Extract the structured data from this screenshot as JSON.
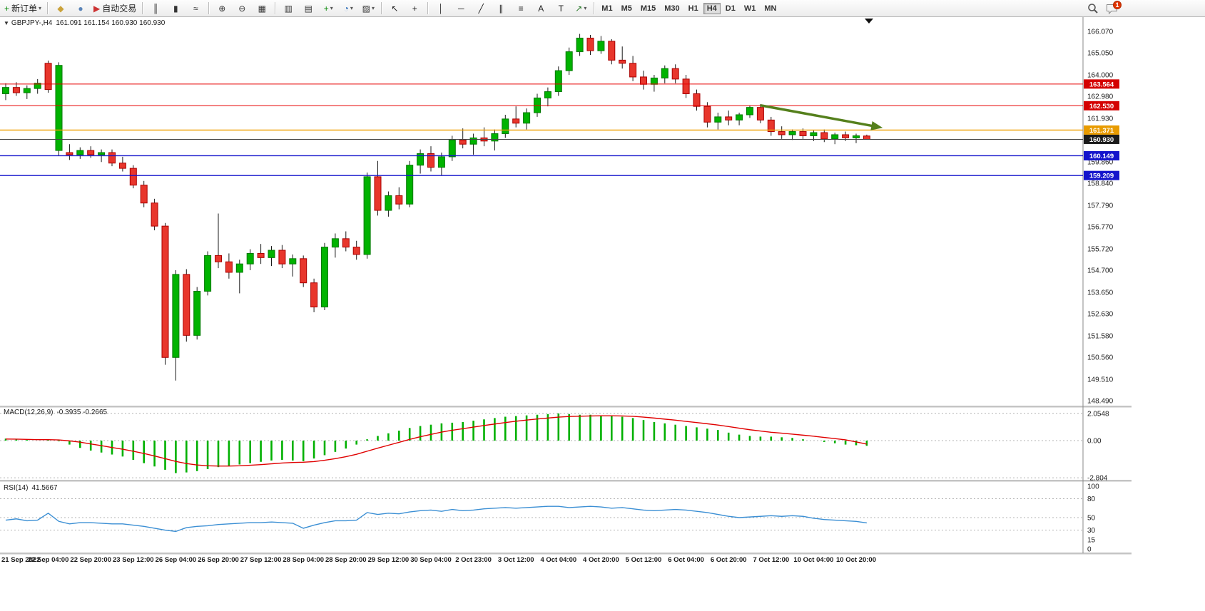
{
  "toolbar": {
    "buttons": [
      {
        "name": "new-order",
        "glyph": "+",
        "color": "#0a8a0a",
        "label": "新订单",
        "dropdown": true
      },
      {
        "sep": true
      },
      {
        "name": "metaeditor",
        "glyph": "◆",
        "color": "#caa23a"
      },
      {
        "name": "market-watch",
        "glyph": "●",
        "color": "#5b84b8"
      },
      {
        "name": "autotrade",
        "glyph": "▶",
        "color": "#cc3333",
        "label": "自动交易"
      },
      {
        "sep": true
      },
      {
        "name": "bar-chart",
        "glyph": "║",
        "color": "#333333"
      },
      {
        "name": "candlestick-chart",
        "glyph": "▮",
        "color": "#333333"
      },
      {
        "name": "line-chart",
        "glyph": "≈",
        "color": "#333333"
      },
      {
        "sep": true
      },
      {
        "name": "zoom-in",
        "glyph": "⊕",
        "color": "#333333"
      },
      {
        "name": "zoom-out",
        "glyph": "⊖",
        "color": "#333333"
      },
      {
        "name": "tile-windows",
        "glyph": "▦",
        "color": "#333333"
      },
      {
        "sep": true
      },
      {
        "name": "auto-scroll",
        "glyph": "▥",
        "color": "#333333"
      },
      {
        "name": "chart-shift",
        "glyph": "▤",
        "color": "#333333"
      },
      {
        "name": "new-chart",
        "glyph": "+",
        "color": "#0a8a0a",
        "dropdown": true
      },
      {
        "name": "periodicity",
        "glyph": "◔",
        "color": "#2a6ab8",
        "dropdown": true
      },
      {
        "name": "templates",
        "glyph": "▨",
        "color": "#333333",
        "dropdown": true
      },
      {
        "sep": true
      },
      {
        "name": "cursor",
        "glyph": "↖",
        "color": "#222222"
      },
      {
        "name": "crosshair",
        "glyph": "+",
        "color": "#222222"
      },
      {
        "sep": true
      },
      {
        "name": "vertical-line",
        "glyph": "│",
        "color": "#222222"
      },
      {
        "name": "horizontal-line",
        "glyph": "─",
        "color": "#222222"
      },
      {
        "name": "trendline",
        "glyph": "╱",
        "color": "#222222"
      },
      {
        "name": "equidistant-channel",
        "glyph": "∥",
        "color": "#222222"
      },
      {
        "name": "fibonacci",
        "glyph": "≡",
        "color": "#222222"
      },
      {
        "name": "text",
        "glyph": "A",
        "color": "#222222"
      },
      {
        "name": "text-label",
        "glyph": "T",
        "color": "#222222"
      },
      {
        "name": "arrows-tool",
        "glyph": "↗",
        "color": "#2a7a2a",
        "dropdown": true
      },
      {
        "sep": true
      }
    ],
    "timeframes": {
      "items": [
        "M1",
        "M5",
        "M15",
        "M30",
        "H1",
        "H4",
        "D1",
        "W1",
        "MN"
      ],
      "active": "H4"
    },
    "notification_badge": "1"
  },
  "chart": {
    "title": {
      "marker": "▼",
      "symbol": "GBPJPY-,H4",
      "ohlc": "161.091 161.154 160.930 160.930"
    },
    "price_axis_labels": [
      "166.070",
      "165.050",
      "164.000",
      "162.980",
      "161.930",
      "159.860",
      "158.840",
      "157.790",
      "156.770",
      "155.720",
      "154.700",
      "153.650",
      "152.630",
      "151.580",
      "150.560",
      "149.510",
      "148.490"
    ]
  },
  "macd": {
    "label": "MACD(12,26,9)",
    "values_text": "-0.3935 -0.2665",
    "axis_labels": [
      "2.0548",
      "0.00",
      "-2.804"
    ]
  },
  "rsi": {
    "label": "RSI(14)",
    "value_text": "41.5667",
    "axis_labels": [
      "100",
      "80",
      "50",
      "30",
      "15",
      "0"
    ]
  },
  "time_axis": [
    "21 Sep 2022",
    "22 Sep 04:00",
    "22 Sep 20:00",
    "23 Sep 12:00",
    "26 Sep 04:00",
    "26 Sep 20:00",
    "27 Sep 12:00",
    "28 Sep 04:00",
    "28 Sep 20:00",
    "29 Sep 12:00",
    "30 Sep 04:00",
    "2 Oct 23:00",
    "3 Oct 12:00",
    "4 Oct 04:00",
    "4 Oct 20:00",
    "5 Oct 12:00",
    "6 Oct 04:00",
    "6 Oct 20:00",
    "7 Oct 12:00",
    "10 Oct 04:00",
    "10 Oct 20:00"
  ],
  "chart_data": {
    "type": "candlestick",
    "symbol": "GBPJPY-",
    "timeframe": "H4",
    "price_ylim": [
      148.49,
      166.07
    ],
    "colors": {
      "up": "#00b300",
      "up_stroke": "#007700",
      "down": "#e8362c",
      "down_stroke": "#aa0000",
      "wick": "#1a1a1a",
      "macd_bar": "#00b000",
      "macd_signal": "#e00000",
      "rsi_line": "#3b8fd4"
    },
    "candles": [
      [
        163.1,
        163.6,
        162.8,
        163.4
      ],
      [
        163.4,
        163.65,
        163.0,
        163.15
      ],
      [
        163.15,
        163.5,
        162.85,
        163.35
      ],
      [
        163.35,
        163.8,
        163.1,
        163.6
      ],
      [
        164.55,
        164.68,
        163.15,
        163.3
      ],
      [
        160.4,
        164.6,
        160.15,
        164.45
      ],
      [
        160.3,
        160.7,
        159.95,
        160.2
      ],
      [
        160.2,
        160.55,
        160.0,
        160.4
      ],
      [
        160.4,
        160.6,
        160.05,
        160.2
      ],
      [
        160.2,
        160.45,
        159.85,
        160.3
      ],
      [
        160.3,
        160.45,
        159.65,
        159.8
      ],
      [
        159.8,
        160.1,
        159.4,
        159.55
      ],
      [
        159.55,
        159.7,
        158.6,
        158.75
      ],
      [
        158.75,
        158.95,
        157.7,
        157.9
      ],
      [
        157.9,
        158.1,
        156.6,
        156.8
      ],
      [
        156.8,
        156.95,
        150.2,
        150.55
      ],
      [
        150.55,
        154.7,
        149.45,
        154.5
      ],
      [
        154.5,
        154.75,
        151.3,
        151.6
      ],
      [
        151.6,
        153.9,
        151.4,
        153.7
      ],
      [
        153.7,
        155.6,
        153.5,
        155.4
      ],
      [
        155.4,
        157.4,
        154.8,
        155.1
      ],
      [
        155.1,
        155.5,
        154.3,
        154.6
      ],
      [
        154.6,
        155.2,
        153.6,
        155.0
      ],
      [
        155.0,
        155.7,
        154.7,
        155.5
      ],
      [
        155.5,
        155.95,
        155.0,
        155.3
      ],
      [
        155.3,
        155.85,
        154.9,
        155.65
      ],
      [
        155.65,
        155.9,
        154.8,
        155.0
      ],
      [
        155.0,
        155.45,
        154.4,
        155.25
      ],
      [
        155.25,
        155.4,
        153.9,
        154.1
      ],
      [
        154.1,
        154.3,
        152.7,
        152.95
      ],
      [
        152.95,
        156.0,
        152.8,
        155.8
      ],
      [
        155.8,
        156.45,
        155.3,
        156.2
      ],
      [
        156.2,
        156.55,
        155.6,
        155.8
      ],
      [
        155.8,
        156.1,
        155.2,
        155.45
      ],
      [
        155.45,
        159.35,
        155.25,
        159.15
      ],
      [
        159.15,
        159.9,
        157.3,
        157.55
      ],
      [
        157.55,
        158.45,
        157.25,
        158.25
      ],
      [
        158.25,
        158.65,
        157.6,
        157.85
      ],
      [
        157.85,
        159.9,
        157.7,
        159.7
      ],
      [
        159.7,
        160.45,
        159.3,
        160.25
      ],
      [
        160.25,
        160.6,
        159.4,
        159.6
      ],
      [
        159.6,
        160.3,
        159.2,
        160.1
      ],
      [
        160.1,
        161.1,
        159.9,
        160.9
      ],
      [
        160.9,
        161.45,
        160.5,
        160.7
      ],
      [
        160.7,
        161.2,
        160.2,
        161.0
      ],
      [
        161.0,
        161.5,
        160.6,
        160.85
      ],
      [
        160.85,
        161.4,
        160.4,
        161.2
      ],
      [
        161.2,
        162.1,
        161.0,
        161.9
      ],
      [
        161.9,
        162.5,
        161.5,
        161.7
      ],
      [
        161.7,
        162.4,
        161.4,
        162.2
      ],
      [
        162.2,
        163.1,
        162.0,
        162.9
      ],
      [
        162.9,
        163.4,
        162.5,
        163.2
      ],
      [
        163.2,
        164.4,
        163.0,
        164.2
      ],
      [
        164.2,
        165.3,
        164.0,
        165.1
      ],
      [
        165.1,
        165.95,
        164.9,
        165.75
      ],
      [
        165.75,
        165.9,
        164.95,
        165.15
      ],
      [
        165.15,
        165.85,
        165.0,
        165.6
      ],
      [
        165.6,
        165.7,
        164.5,
        164.7
      ],
      [
        164.7,
        165.35,
        164.3,
        164.55
      ],
      [
        164.55,
        164.9,
        163.7,
        163.9
      ],
      [
        163.9,
        164.2,
        163.3,
        163.55
      ],
      [
        163.55,
        164.0,
        163.2,
        163.85
      ],
      [
        163.85,
        164.45,
        163.6,
        164.3
      ],
      [
        164.3,
        164.5,
        163.6,
        163.8
      ],
      [
        163.8,
        164.0,
        162.9,
        163.1
      ],
      [
        163.1,
        163.3,
        162.3,
        162.5
      ],
      [
        162.5,
        162.7,
        161.5,
        161.75
      ],
      [
        161.75,
        162.2,
        161.4,
        162.0
      ],
      [
        162.0,
        162.3,
        161.6,
        161.85
      ],
      [
        161.85,
        162.2,
        161.6,
        162.1
      ],
      [
        162.1,
        162.55,
        161.95,
        162.45
      ],
      [
        162.45,
        162.6,
        161.7,
        161.85
      ],
      [
        161.85,
        162.0,
        161.1,
        161.3
      ],
      [
        161.3,
        161.55,
        160.95,
        161.15
      ],
      [
        161.15,
        161.4,
        160.9,
        161.3
      ],
      [
        161.3,
        161.45,
        160.95,
        161.1
      ],
      [
        161.1,
        161.35,
        160.85,
        161.25
      ],
      [
        161.25,
        161.4,
        160.8,
        160.95
      ],
      [
        160.95,
        161.25,
        160.7,
        161.15
      ],
      [
        161.15,
        161.3,
        160.85,
        161.0
      ],
      [
        161.0,
        161.2,
        160.75,
        161.1
      ],
      [
        161.091,
        161.154,
        160.93,
        160.93
      ]
    ],
    "hlines": [
      {
        "label": "163.564",
        "price": 163.564,
        "color": "#e80000",
        "badge": "#d40000",
        "width": 1
      },
      {
        "label": "162.530",
        "price": 162.53,
        "color": "#e80000",
        "badge": "#d40000",
        "width": 1
      },
      {
        "label": "161.371",
        "price": 161.371,
        "color": "#f0a000",
        "badge": "#e89b00",
        "width": 1.4
      },
      {
        "label": "160.930",
        "price": 160.93,
        "color": "#444444",
        "badge": "#1a1a1a",
        "width": 1
      },
      {
        "label": "160.149",
        "price": 160.149,
        "color": "#1414cc",
        "badge": "#1414cc",
        "width": 1.4
      },
      {
        "label": "159.209",
        "price": 159.209,
        "color": "#1414cc",
        "badge": "#1414cc",
        "width": 1.4
      }
    ],
    "trend_arrow": {
      "from_index": 71,
      "from_price": 162.55,
      "to_index": 82.5,
      "to_price": 161.48,
      "color": "#55801c"
    },
    "macd": {
      "ylim": [
        -2.804,
        2.0548
      ],
      "histogram": [
        0.15,
        0.1,
        0.05,
        0.0,
        0.1,
        -0.05,
        -0.3,
        -0.55,
        -0.75,
        -0.9,
        -1.05,
        -1.2,
        -1.45,
        -1.7,
        -1.95,
        -2.2,
        -2.45,
        -2.4,
        -2.3,
        -2.15,
        -2.0,
        -1.9,
        -1.8,
        -1.7,
        -1.6,
        -1.5,
        -1.45,
        -1.5,
        -1.55,
        -1.35,
        -1.1,
        -0.85,
        -0.6,
        -0.3,
        0.1,
        0.35,
        0.55,
        0.75,
        0.95,
        1.1,
        1.2,
        1.3,
        1.35,
        1.4,
        1.5,
        1.6,
        1.7,
        1.8,
        1.85,
        1.9,
        1.95,
        2.0,
        2.05,
        2.0,
        1.95,
        1.95,
        1.9,
        1.85,
        1.8,
        1.7,
        1.55,
        1.4,
        1.3,
        1.2,
        1.1,
        1.0,
        0.9,
        0.8,
        0.6,
        0.45,
        0.35,
        0.3,
        0.3,
        0.25,
        0.2,
        0.1,
        0.0,
        -0.1,
        -0.2,
        -0.3,
        -0.35,
        -0.3935
      ],
      "signal": [
        0.12,
        0.11,
        0.09,
        0.07,
        0.07,
        0.05,
        -0.02,
        -0.12,
        -0.25,
        -0.38,
        -0.52,
        -0.65,
        -0.8,
        -0.97,
        -1.16,
        -1.36,
        -1.57,
        -1.73,
        -1.84,
        -1.9,
        -1.92,
        -1.92,
        -1.9,
        -1.86,
        -1.81,
        -1.75,
        -1.69,
        -1.65,
        -1.63,
        -1.58,
        -1.48,
        -1.36,
        -1.21,
        -1.03,
        -0.8,
        -0.57,
        -0.35,
        -0.13,
        0.09,
        0.29,
        0.47,
        0.64,
        0.78,
        0.9,
        1.02,
        1.14,
        1.25,
        1.36,
        1.46,
        1.55,
        1.63,
        1.7,
        1.77,
        1.82,
        1.84,
        1.86,
        1.87,
        1.87,
        1.86,
        1.83,
        1.77,
        1.7,
        1.62,
        1.54,
        1.45,
        1.36,
        1.27,
        1.17,
        1.06,
        0.94,
        0.82,
        0.72,
        0.63,
        0.56,
        0.49,
        0.41,
        0.33,
        0.24,
        0.15,
        0.06,
        -0.1,
        -0.2665
      ]
    },
    "rsi": {
      "ylim": [
        0,
        100
      ],
      "levels": [
        80,
        50,
        30
      ],
      "values": [
        46,
        48,
        45,
        46,
        57,
        44,
        40,
        42,
        42,
        41,
        40,
        40,
        38,
        36,
        33,
        30,
        28,
        34,
        36,
        37,
        39,
        40,
        41,
        42,
        42,
        43,
        42,
        41,
        33,
        38,
        42,
        45,
        45,
        46,
        58,
        55,
        57,
        56,
        59,
        61,
        62,
        60,
        63,
        61,
        62,
        64,
        65,
        66,
        65,
        66,
        67,
        68,
        68,
        66,
        67,
        68,
        67,
        65,
        66,
        64,
        62,
        61,
        62,
        63,
        62,
        60,
        58,
        55,
        52,
        50,
        51,
        52,
        53,
        52,
        53,
        52,
        49,
        47,
        46,
        45,
        44,
        41.5667
      ]
    }
  }
}
